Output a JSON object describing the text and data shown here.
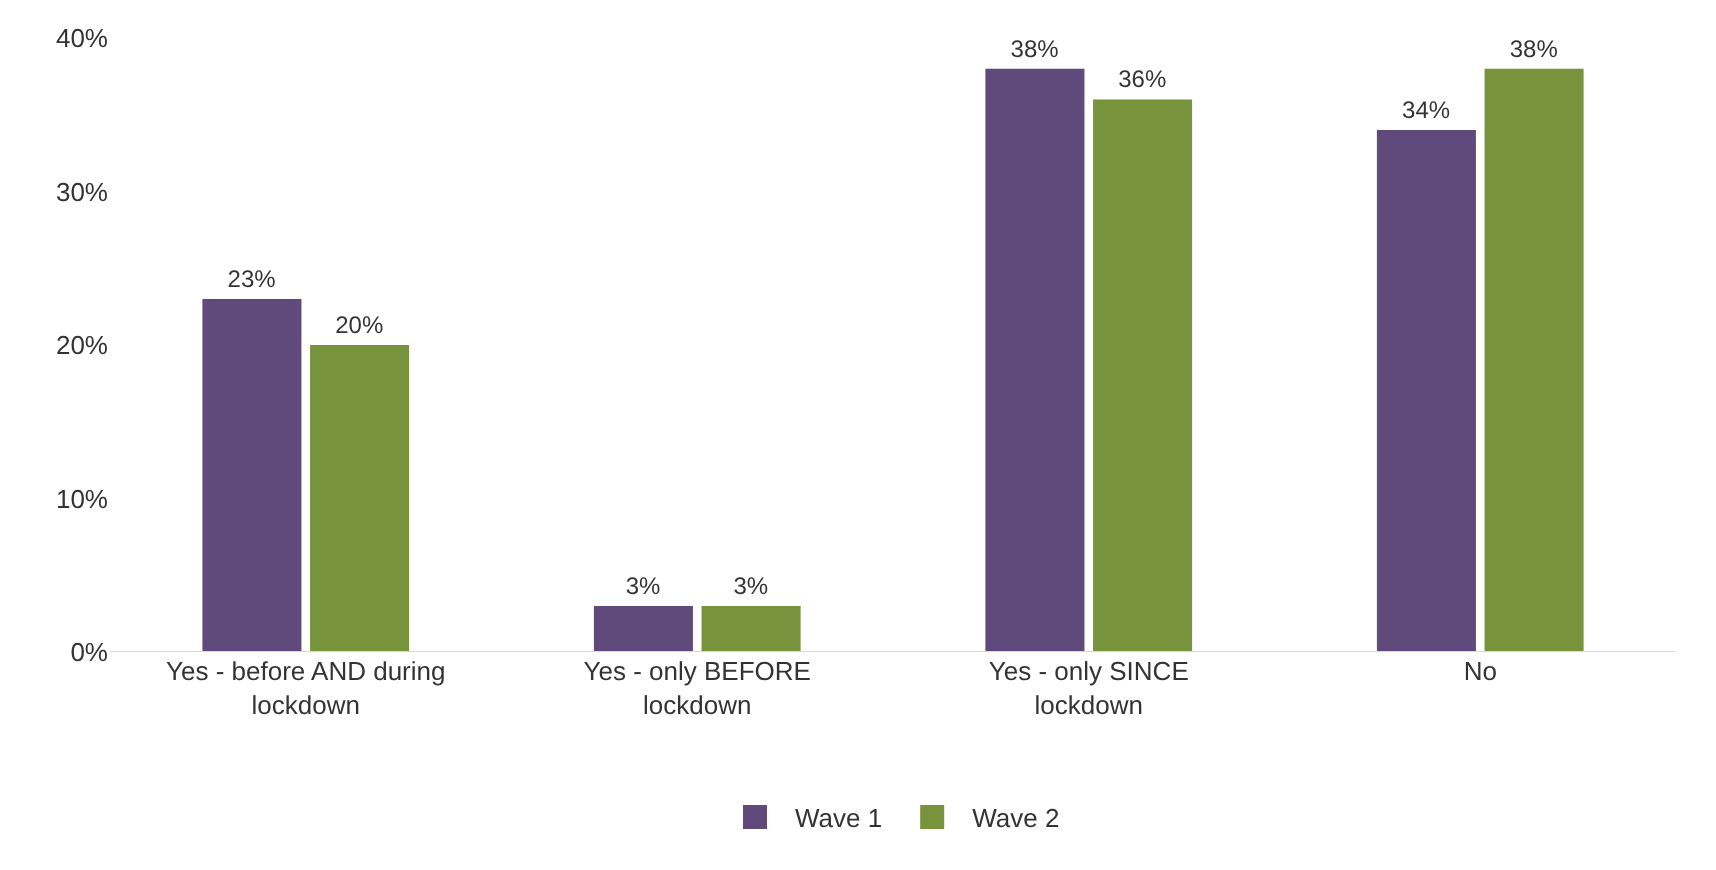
{
  "chart_data": {
    "type": "bar",
    "categories": [
      "Yes - before AND during lockdown",
      "Yes - only BEFORE lockdown",
      "Yes - only SINCE lockdown",
      "No"
    ],
    "series": [
      {
        "name": "Wave 1",
        "color": "#604a7b",
        "values": [
          23,
          3,
          38,
          34
        ],
        "value_labels": [
          "23%",
          "3%",
          "38%",
          "34%"
        ]
      },
      {
        "name": "Wave 2",
        "color": "#77933c",
        "values": [
          20,
          3,
          36,
          38
        ],
        "value_labels": [
          "20%",
          "3%",
          "36%",
          "38%"
        ]
      }
    ],
    "ylim": [
      0,
      40
    ],
    "yticks": [
      {
        "value": 0,
        "label": "0%"
      },
      {
        "value": 10,
        "label": "10%"
      },
      {
        "value": 20,
        "label": "20%"
      },
      {
        "value": 30,
        "label": "30%"
      },
      {
        "value": 40,
        "label": "40%"
      }
    ],
    "grid": false,
    "legend": "bottom"
  }
}
